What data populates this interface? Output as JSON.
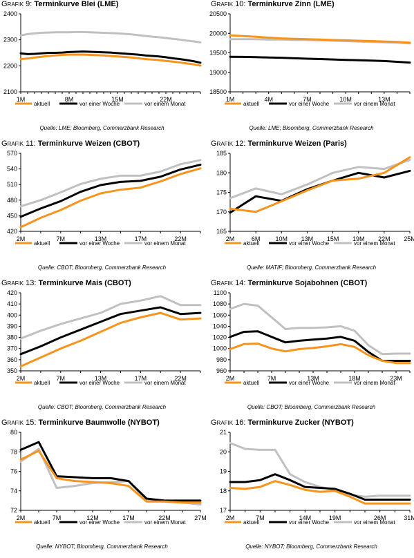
{
  "chart_data": [
    {
      "type": "line",
      "id": "g9",
      "number": "Grafik 9:",
      "title": "Terminkurve Blei (LME)",
      "source": "Quelle: LME; Bloomberg, Commerzbank Research",
      "categories": [
        "1M",
        "2M",
        "3M",
        "4M",
        "5M",
        "6M",
        "7M",
        "8M",
        "9M",
        "10M",
        "11M",
        "12M",
        "13M",
        "14M",
        "15M",
        "16M",
        "17M",
        "18M",
        "19M",
        "20M",
        "21M",
        "22M",
        "23M",
        "24M",
        "25M",
        "26M",
        "27M"
      ],
      "tick_labels": [
        "1M",
        "8M",
        "15M",
        "22M"
      ],
      "ylim": [
        2100,
        2400
      ],
      "yticks": [
        2100,
        2200,
        2300,
        2400
      ],
      "series": [
        {
          "name": "aktuell",
          "color": "#f7941d",
          "values": [
            2226,
            2228,
            2232,
            2235,
            2238,
            2240,
            2242,
            2243,
            2243,
            2243,
            2242,
            2241,
            2240,
            2238,
            2236,
            2234,
            2232,
            2229,
            2226,
            2224,
            2222,
            2219,
            2216,
            2213,
            2209,
            2206,
            2201
          ]
        },
        {
          "name": "vor einer Woche",
          "color": "#000000",
          "values": [
            2248,
            2245,
            2246,
            2248,
            2250,
            2250,
            2251,
            2253,
            2254,
            2255,
            2254,
            2253,
            2252,
            2251,
            2249,
            2247,
            2245,
            2243,
            2240,
            2238,
            2236,
            2233,
            2229,
            2226,
            2222,
            2218,
            2212
          ]
        },
        {
          "name": "vor einem Monat",
          "color": "#c0c0c0",
          "values": [
            2317,
            2322,
            2325,
            2327,
            2328,
            2329,
            2329,
            2329,
            2330,
            2330,
            2329,
            2328,
            2327,
            2326,
            2325,
            2323,
            2321,
            2318,
            2315,
            2312,
            2310,
            2307,
            2304,
            2301,
            2297,
            2294,
            2290
          ]
        }
      ]
    },
    {
      "type": "line",
      "id": "g10",
      "number": "Grafik 10:",
      "title": "Terminkurve Zinn (LME)",
      "source": "Quelle: LME; Bloomberg, Commerzbank Research",
      "categories": [
        "1M",
        "2M",
        "3M",
        "4M",
        "5M",
        "6M",
        "7M",
        "8M",
        "9M",
        "10M",
        "11M",
        "12M",
        "13M",
        "14M",
        "15M"
      ],
      "tick_labels": [
        "1M",
        "4M",
        "7M",
        "10M",
        "13M"
      ],
      "ylim": [
        18500,
        20500
      ],
      "yticks": [
        18500,
        19000,
        19500,
        20000,
        20500
      ],
      "series": [
        {
          "name": "aktuell",
          "color": "#f7941d",
          "values": [
            19950,
            19930,
            19910,
            19890,
            19870,
            19860,
            19850,
            19840,
            19830,
            19820,
            19810,
            19800,
            19790,
            19780,
            19760
          ]
        },
        {
          "name": "vor einer Woche",
          "color": "#000000",
          "values": [
            19400,
            19395,
            19390,
            19380,
            19375,
            19360,
            19350,
            19340,
            19330,
            19320,
            19310,
            19300,
            19290,
            19270,
            19250
          ]
        },
        {
          "name": "vor einem Monat",
          "color": "#c0c0c0",
          "values": [
            19850,
            19850,
            19850,
            19840,
            19840,
            19830,
            19830,
            19820,
            19810,
            19800,
            19790,
            19780,
            19770,
            19760,
            19740
          ]
        }
      ]
    },
    {
      "type": "line",
      "id": "g11",
      "number": "Grafik 11:",
      "title": "Terminkurve Weizen (CBOT)",
      "source": "Quelle: CBOT; Bloomberg, Commerzbank Research",
      "categories": [
        "2M",
        "5M",
        "7M",
        "10M",
        "13M",
        "15M",
        "17M",
        "19M",
        "22M",
        "24M"
      ],
      "tick_labels": [
        "2M",
        "7M",
        "13M",
        "17M",
        "22M"
      ],
      "tick_indices": [
        0,
        2,
        4,
        6,
        8
      ],
      "ylim": [
        420,
        570
      ],
      "yticks": [
        420,
        450,
        480,
        510,
        540,
        570
      ],
      "series": [
        {
          "name": "aktuell",
          "color": "#f7941d",
          "values": [
            428,
            446,
            461,
            479,
            493,
            500,
            504,
            516,
            530,
            541
          ]
        },
        {
          "name": "vor einer Woche",
          "color": "#000000",
          "values": [
            448,
            464,
            478,
            496,
            509,
            515,
            517,
            525,
            539,
            548
          ]
        },
        {
          "name": "vor einem Monat",
          "color": "#c0c0c0",
          "values": [
            468,
            480,
            495,
            511,
            521,
            527,
            527,
            535,
            549,
            557
          ]
        }
      ]
    },
    {
      "type": "line",
      "id": "g12",
      "number": "Grafik 12:",
      "title": "Terminkurve Weizen (Paris)",
      "source": "Quelle: MATIF; Bloomberg, Commerzbank Research",
      "categories": [
        "2M",
        "6M",
        "10M",
        "13M",
        "15M",
        "19M",
        "22M",
        "25M"
      ],
      "tick_labels": [
        "2M",
        "6M",
        "10M",
        "13M",
        "15M",
        "19M",
        "22M",
        "25M"
      ],
      "ylim": [
        165,
        185
      ],
      "yticks": [
        165,
        170,
        175,
        180,
        185
      ],
      "series": [
        {
          "name": "aktuell",
          "color": "#f7941d",
          "values": [
            170.8,
            170.0,
            172.7,
            175.5,
            178.0,
            178.5,
            180.0,
            184.0
          ]
        },
        {
          "name": "vor einer Woche",
          "color": "#000000",
          "values": [
            169.8,
            174.0,
            172.8,
            175.8,
            178.0,
            180.0,
            178.8,
            180.5
          ]
        },
        {
          "name": "vor einem Monat",
          "color": "#c0c0c0",
          "values": [
            173.5,
            176.0,
            174.5,
            177.0,
            180.0,
            181.5,
            181.0,
            183.3
          ]
        }
      ]
    },
    {
      "type": "line",
      "id": "g13",
      "number": "Grafik 13:",
      "title": "Terminkurve Mais (CBOT)",
      "source": "Quelle: CBOT; Bloomberg, Commerzbank Research",
      "categories": [
        "2M",
        "5M",
        "7M",
        "10M",
        "13M",
        "15M",
        "17M",
        "19M",
        "22M",
        "24M"
      ],
      "tick_labels": [
        "2M",
        "7M",
        "13M",
        "17M",
        "22M"
      ],
      "tick_indices": [
        0,
        2,
        4,
        6,
        8
      ],
      "ylim": [
        350,
        420
      ],
      "yticks": [
        350,
        360,
        370,
        380,
        390,
        400,
        410,
        420
      ],
      "series": [
        {
          "name": "aktuell",
          "color": "#f7941d",
          "values": [
            354,
            362,
            370,
            377,
            385,
            393,
            398,
            402,
            396,
            397
          ]
        },
        {
          "name": "vor einer Woche",
          "color": "#000000",
          "values": [
            365,
            372,
            380,
            387,
            394,
            401,
            404,
            407,
            401,
            402
          ]
        },
        {
          "name": "vor einem Monat",
          "color": "#c0c0c0",
          "values": [
            379,
            386,
            392,
            397,
            402,
            410,
            413,
            417,
            409,
            409
          ]
        }
      ]
    },
    {
      "type": "line",
      "id": "g14",
      "number": "Grafik 14:",
      "title": "Terminkurve Sojabohnen (CBOT)",
      "source": "Quelle: CBOT; Bloomberg, Commerzbank Research",
      "categories": [
        "2M",
        "4M",
        "5M",
        "7M",
        "9M",
        "11M",
        "13M",
        "15M",
        "17M",
        "18M",
        "20M",
        "22M",
        "23M",
        "25M"
      ],
      "tick_labels": [
        "2M",
        "7M",
        "13M",
        "18M",
        "23M"
      ],
      "tick_indices": [
        0,
        3,
        6,
        9,
        12
      ],
      "ylim": [
        960,
        1100
      ],
      "yticks": [
        960,
        980,
        1000,
        1020,
        1040,
        1060,
        1080,
        1100
      ],
      "series": [
        {
          "name": "aktuell",
          "color": "#f7941d",
          "values": [
            999,
            1008,
            1009,
            1000,
            995,
            999,
            1001,
            1004,
            1008,
            1003,
            988,
            978,
            974,
            974
          ]
        },
        {
          "name": "vor einer Woche",
          "color": "#000000",
          "values": [
            1021,
            1030,
            1031,
            1021,
            1011,
            1014,
            1016,
            1018,
            1021,
            1014,
            994,
            978,
            978,
            978
          ]
        },
        {
          "name": "vor einem Monat",
          "color": "#c0c0c0",
          "values": [
            1071,
            1080,
            1077,
            1056,
            1035,
            1037,
            1037,
            1038,
            1040,
            1032,
            1006,
            990,
            991,
            991
          ]
        }
      ]
    },
    {
      "type": "line",
      "id": "g15",
      "number": "Grafik 15:",
      "title": "Terminkurve Baumwolle (NYBOT)",
      "source": "Quelle: NYBOT; Bloomberg, Commerzbank Research",
      "categories": [
        "2M",
        "5M",
        "7M",
        "10M",
        "12M",
        "15M",
        "17M",
        "19M",
        "22M",
        "25M",
        "27M"
      ],
      "tick_labels": [
        "2M",
        "7M",
        "12M",
        "17M",
        "22M",
        "27M"
      ],
      "tick_indices": [
        0,
        2,
        4,
        6,
        8,
        10
      ],
      "ylim": [
        72,
        80
      ],
      "yticks": [
        72,
        74,
        76,
        78,
        80
      ],
      "series": [
        {
          "name": "aktuell",
          "color": "#f7941d",
          "values": [
            77.2,
            78.1,
            75.3,
            75.0,
            74.9,
            74.8,
            74.5,
            72.9,
            72.9,
            72.8,
            72.8
          ]
        },
        {
          "name": "vor einer Woche",
          "color": "#000000",
          "values": [
            78.2,
            79.0,
            75.5,
            75.4,
            75.3,
            75.3,
            75.0,
            73.2,
            73.0,
            73.0,
            73.0
          ]
        },
        {
          "name": "vor einem Monat",
          "color": "#c0c0c0",
          "values": [
            77.0,
            78.3,
            74.3,
            74.5,
            74.8,
            74.9,
            75.0,
            73.0,
            72.9,
            72.8,
            72.6
          ]
        }
      ]
    },
    {
      "type": "line",
      "id": "g16",
      "number": "Grafik 16:",
      "title": "Terminkurve Zucker (NYBOT)",
      "source": "Quelle: NYBOT; Bloomberg, Commerzbank Research",
      "categories": [
        "2M",
        "5M",
        "7M",
        "10M",
        "12M",
        "14M",
        "17M",
        "19M",
        "22M",
        "24M",
        "26M",
        "29M",
        "31M"
      ],
      "tick_labels": [
        "2M",
        "7M",
        "14M",
        "19M",
        "26M",
        "31M"
      ],
      "tick_indices": [
        0,
        2,
        5,
        7,
        10,
        12
      ],
      "ylim": [
        17,
        21
      ],
      "yticks": [
        17,
        18,
        19,
        20,
        21
      ],
      "series": [
        {
          "name": "aktuell",
          "color": "#f7941d",
          "values": [
            18.15,
            18.1,
            18.2,
            18.5,
            18.3,
            18.05,
            17.95,
            18.0,
            17.7,
            17.35,
            17.35,
            17.35,
            17.35
          ]
        },
        {
          "name": "vor einer Woche",
          "color": "#000000",
          "values": [
            18.45,
            18.45,
            18.55,
            18.85,
            18.55,
            18.2,
            18.15,
            18.1,
            17.85,
            17.55,
            17.55,
            17.55,
            17.55
          ]
        },
        {
          "name": "vor einem Monat",
          "color": "#c0c0c0",
          "values": [
            20.45,
            20.15,
            20.1,
            20.1,
            18.85,
            18.45,
            18.2,
            18.05,
            17.8,
            17.7,
            17.75,
            17.75,
            17.75
          ]
        }
      ]
    }
  ]
}
